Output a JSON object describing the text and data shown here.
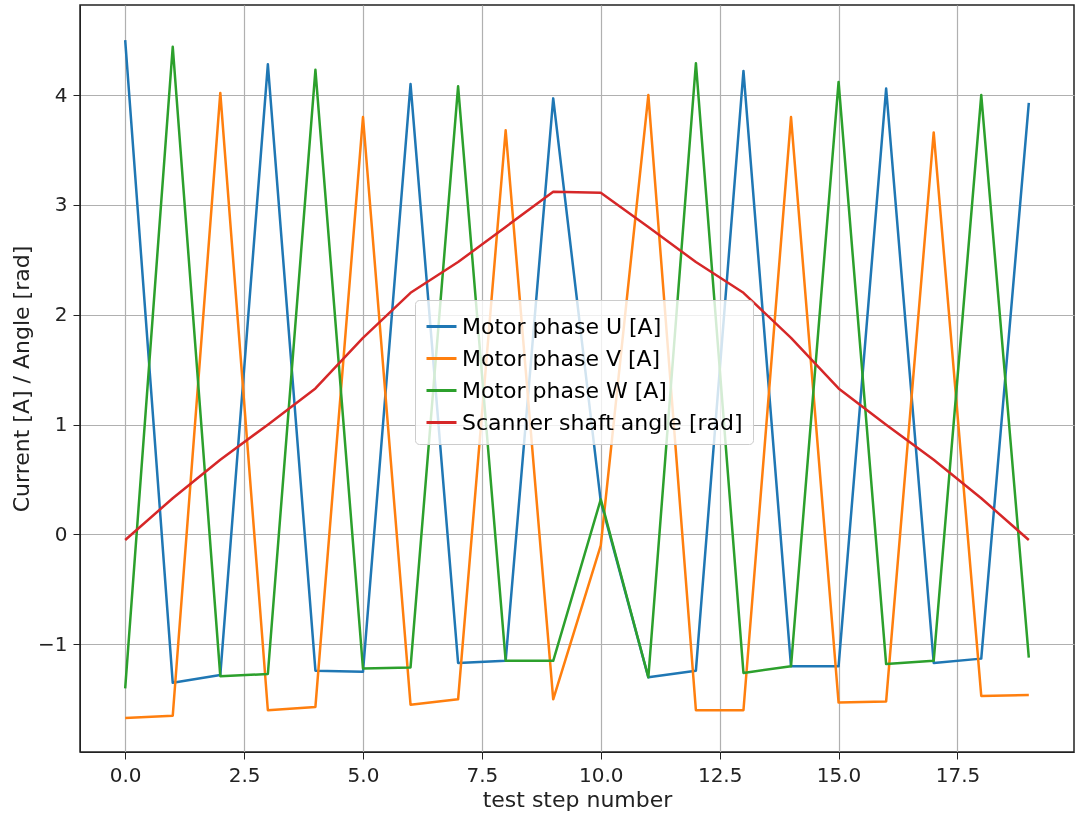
{
  "chart_data": {
    "type": "line",
    "xlabel": "test step number",
    "ylabel": "Current [A] / Angle [rad]",
    "x": [
      0,
      1,
      2,
      3,
      4,
      5,
      6,
      7,
      8,
      9,
      10,
      11,
      12,
      13,
      14,
      15,
      16,
      17,
      18,
      19
    ],
    "series": [
      {
        "name": "Motor phase U [A]",
        "color": "#1f77b4",
        "values": [
          4.5,
          -1.35,
          -1.28,
          4.28,
          -1.24,
          -1.25,
          4.1,
          -1.17,
          -1.15,
          3.97,
          0.3,
          -1.3,
          -1.24,
          4.22,
          -1.2,
          -1.2,
          4.06,
          -1.17,
          -1.13,
          3.93
        ]
      },
      {
        "name": "Motor phase V [A]",
        "color": "#ff7f0e",
        "values": [
          -1.67,
          -1.65,
          4.02,
          -1.6,
          -1.57,
          3.8,
          -1.55,
          -1.5,
          3.68,
          -1.5,
          -0.1,
          4.0,
          -1.6,
          -1.6,
          3.8,
          -1.53,
          -1.52,
          3.66,
          -1.47,
          -1.46
        ]
      },
      {
        "name": "Motor phase W [A]",
        "color": "#2ca02c",
        "values": [
          -1.4,
          4.44,
          -1.29,
          -1.27,
          4.23,
          -1.22,
          -1.21,
          4.08,
          -1.15,
          -1.15,
          0.32,
          -1.3,
          4.29,
          -1.26,
          -1.2,
          4.12,
          -1.18,
          -1.15,
          4.0,
          -1.12
        ]
      },
      {
        "name": "Scanner shaft angle [rad]",
        "color": "#d62728",
        "values": [
          -0.05,
          0.33,
          0.68,
          1.0,
          1.33,
          1.79,
          2.2,
          2.48,
          2.8,
          3.12,
          3.11,
          2.8,
          2.48,
          2.2,
          1.79,
          1.33,
          1.0,
          0.68,
          0.33,
          -0.05
        ]
      }
    ],
    "xlim": [
      -0.95,
      19.95
    ],
    "ylim": [
      -1.98,
      4.82
    ],
    "xticks": [
      {
        "value": 0,
        "label": "0.0"
      },
      {
        "value": 2.5,
        "label": "2.5"
      },
      {
        "value": 5,
        "label": "5.0"
      },
      {
        "value": 7.5,
        "label": "7.5"
      },
      {
        "value": 10,
        "label": "10.0"
      },
      {
        "value": 12.5,
        "label": "12.5"
      },
      {
        "value": 15,
        "label": "15.0"
      },
      {
        "value": 17.5,
        "label": "17.5"
      }
    ],
    "yticks": [
      {
        "value": -1,
        "label": "−1"
      },
      0,
      1,
      2,
      3,
      4
    ],
    "grid": true,
    "legend": "center",
    "line_style": "solid",
    "marker": "none"
  }
}
